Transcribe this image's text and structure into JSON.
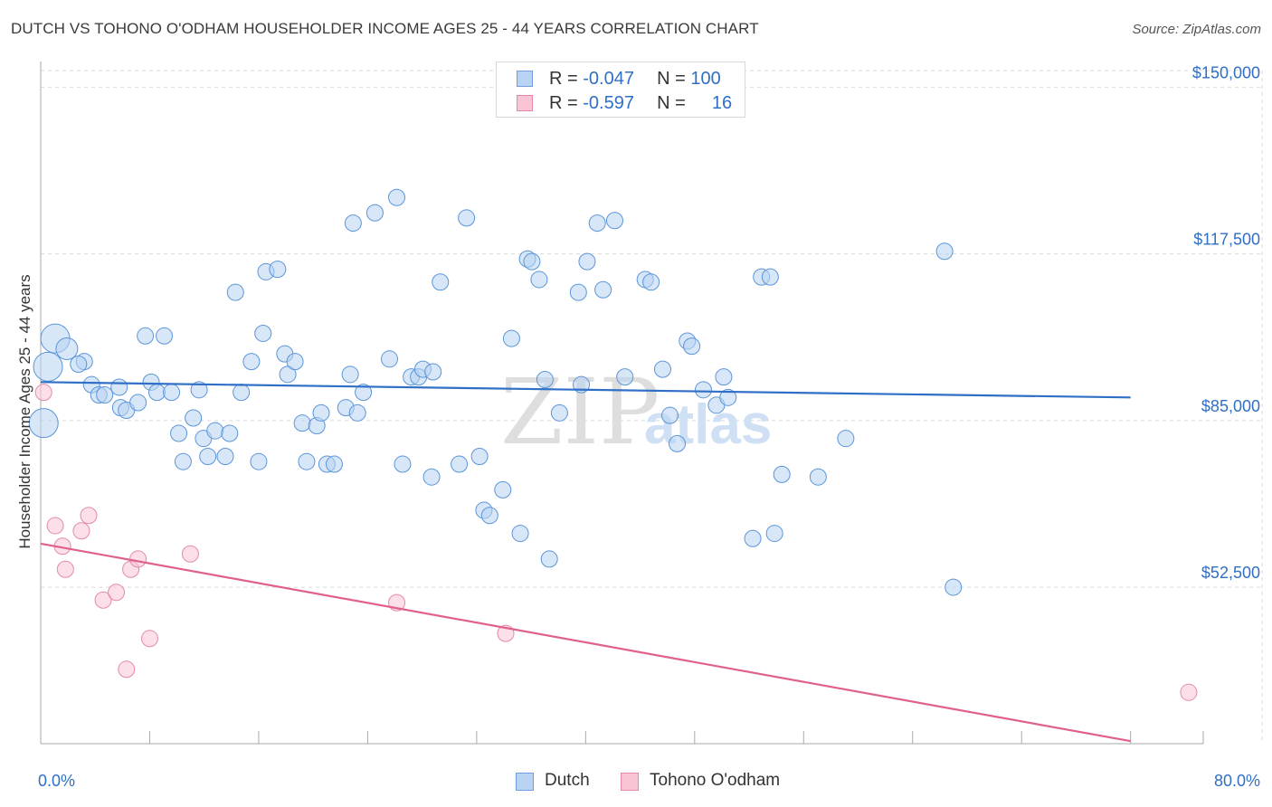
{
  "title": "DUTCH VS TOHONO O'ODHAM HOUSEHOLDER INCOME AGES 25 - 44 YEARS CORRELATION CHART",
  "source": "Source: ZipAtlas.com",
  "watermark": {
    "zip": "ZIP",
    "atlas": "atlas"
  },
  "legend": {
    "r_label": "R =",
    "n_label": "N =",
    "entries": [
      {
        "name": "Dutch",
        "r": "-0.047",
        "n": "100",
        "fill": "#b8d3f3",
        "stroke": "#6f9fdc"
      },
      {
        "name": "Tohono O'odham",
        "r": "-0.597",
        "n": "16",
        "fill": "#f9c5d5",
        "stroke": "#e48aa8"
      }
    ]
  },
  "chart_data": {
    "type": "scatter",
    "title": "DUTCH VS TOHONO O'ODHAM HOUSEHOLDER INCOME AGES 25 - 44 YEARS CORRELATION CHART",
    "xlabel": "",
    "ylabel": "Householder Income Ages 25 - 44 years",
    "xlim": [
      0,
      80
    ],
    "ylim": [
      22000,
      155000
    ],
    "x_tick_labels": [
      {
        "value": 0,
        "label": "0.0%"
      },
      {
        "value": 80,
        "label": "80.0%"
      }
    ],
    "y_ticks": [
      {
        "value": 52500,
        "label": "$52,500"
      },
      {
        "value": 85000,
        "label": "$85,000"
      },
      {
        "value": 117500,
        "label": "$117,500"
      },
      {
        "value": 150000,
        "label": "$150,000"
      }
    ],
    "x_minor_ticks": [
      7.5,
      15,
      22.5,
      30,
      37.5,
      45,
      52.5,
      60,
      67.5,
      75,
      80
    ],
    "colors": {
      "grid": "#d9d9d9",
      "axis": "#aaaaaa",
      "tick_label": "#2f6fc6"
    },
    "series": [
      {
        "name": "Dutch",
        "color": "#5b95d9",
        "fill": "#b8d3f3",
        "trend": {
          "x": [
            0,
            75
          ],
          "y": [
            92500,
            89500
          ],
          "color": "#2f6fc6"
        },
        "points": [
          [
            1.0,
            101000,
            3
          ],
          [
            0.5,
            95500,
            3
          ],
          [
            0.2,
            84500,
            3
          ],
          [
            1.8,
            99000,
            2
          ],
          [
            3.0,
            96500,
            1
          ],
          [
            2.6,
            96000,
            1
          ],
          [
            3.5,
            92000,
            1
          ],
          [
            4.0,
            90000,
            1
          ],
          [
            4.4,
            90000,
            1
          ],
          [
            5.5,
            87500,
            1
          ],
          [
            5.9,
            87000,
            1
          ],
          [
            5.4,
            91500,
            1
          ],
          [
            6.7,
            88500,
            1
          ],
          [
            7.2,
            101500,
            1
          ],
          [
            7.6,
            92500,
            1
          ],
          [
            8.0,
            90500,
            1
          ],
          [
            8.5,
            101500,
            1
          ],
          [
            9.0,
            90500,
            1
          ],
          [
            9.5,
            82500,
            1
          ],
          [
            9.8,
            77000,
            1
          ],
          [
            10.5,
            85500,
            1
          ],
          [
            10.9,
            91000,
            1
          ],
          [
            11.2,
            81500,
            1
          ],
          [
            11.5,
            78000,
            1
          ],
          [
            12.0,
            83000,
            1
          ],
          [
            12.7,
            78000,
            1
          ],
          [
            13.0,
            82500,
            1
          ],
          [
            13.4,
            110000,
            1
          ],
          [
            13.8,
            90500,
            1
          ],
          [
            14.5,
            96500,
            1
          ],
          [
            15.0,
            77000,
            1
          ],
          [
            15.3,
            102000,
            1
          ],
          [
            15.5,
            114000,
            1
          ],
          [
            16.3,
            114500,
            1
          ],
          [
            16.8,
            98000,
            1
          ],
          [
            17.0,
            94000,
            1
          ],
          [
            17.5,
            96500,
            1
          ],
          [
            18.0,
            84500,
            1
          ],
          [
            18.3,
            77000,
            1
          ],
          [
            19.0,
            84000,
            1
          ],
          [
            19.3,
            86500,
            1
          ],
          [
            19.7,
            76500,
            1
          ],
          [
            20.2,
            76500,
            1
          ],
          [
            21.0,
            87500,
            1
          ],
          [
            21.3,
            94000,
            1
          ],
          [
            21.8,
            86500,
            1
          ],
          [
            22.2,
            90500,
            1
          ],
          [
            21.5,
            123500,
            1
          ],
          [
            23.0,
            125500,
            1
          ],
          [
            24.0,
            97000,
            1
          ],
          [
            24.5,
            128500,
            1
          ],
          [
            24.9,
            76500,
            1
          ],
          [
            25.5,
            93500,
            1
          ],
          [
            26.0,
            93500,
            1
          ],
          [
            26.3,
            95000,
            1
          ],
          [
            27.0,
            94500,
            1
          ],
          [
            27.5,
            112000,
            1
          ],
          [
            26.9,
            74000,
            1
          ],
          [
            28.8,
            76500,
            1
          ],
          [
            29.3,
            124500,
            1
          ],
          [
            30.2,
            78000,
            1
          ],
          [
            30.5,
            67500,
            1
          ],
          [
            30.9,
            66500,
            1
          ],
          [
            31.8,
            71500,
            1
          ],
          [
            32.4,
            101000,
            1
          ],
          [
            33.0,
            63000,
            1
          ],
          [
            33.5,
            116500,
            1
          ],
          [
            33.8,
            116000,
            1
          ],
          [
            34.3,
            112500,
            1
          ],
          [
            34.7,
            93000,
            1
          ],
          [
            35.0,
            58000,
            1
          ],
          [
            35.7,
            86500,
            1
          ],
          [
            37.2,
            92000,
            1
          ],
          [
            37.0,
            110000,
            1
          ],
          [
            37.6,
            116000,
            1
          ],
          [
            38.3,
            123500,
            1
          ],
          [
            38.7,
            110500,
            1
          ],
          [
            39.5,
            124000,
            1
          ],
          [
            40.2,
            93500,
            1
          ],
          [
            41.6,
            112500,
            1
          ],
          [
            42.0,
            112000,
            1
          ],
          [
            42.8,
            95000,
            1
          ],
          [
            43.3,
            86000,
            1
          ],
          [
            43.8,
            80500,
            1
          ],
          [
            44.5,
            100500,
            1
          ],
          [
            44.8,
            99500,
            1
          ],
          [
            45.6,
            91000,
            1
          ],
          [
            46.5,
            88000,
            1
          ],
          [
            47.0,
            93500,
            1
          ],
          [
            47.3,
            89500,
            1
          ],
          [
            49.0,
            62000,
            1
          ],
          [
            49.6,
            113000,
            1
          ],
          [
            50.2,
            113000,
            1
          ],
          [
            50.5,
            63000,
            1
          ],
          [
            51.0,
            74500,
            1
          ],
          [
            53.5,
            74000,
            1
          ],
          [
            55.4,
            81500,
            1
          ],
          [
            62.2,
            118000,
            1
          ],
          [
            62.8,
            52500,
            1
          ]
        ]
      },
      {
        "name": "Tohono O'odham",
        "color": "#e48aa8",
        "fill": "#f9c5d5",
        "trend": {
          "x": [
            0,
            75
          ],
          "y": [
            61000,
            22500
          ],
          "color": "#e0608c"
        },
        "points": [
          [
            0.2,
            90500,
            1
          ],
          [
            1.0,
            64500,
            1
          ],
          [
            1.5,
            60500,
            1
          ],
          [
            1.7,
            56000,
            1
          ],
          [
            2.8,
            63500,
            1
          ],
          [
            3.3,
            66500,
            1
          ],
          [
            4.3,
            50000,
            1
          ],
          [
            5.2,
            51500,
            1
          ],
          [
            5.9,
            36500,
            1
          ],
          [
            6.2,
            56000,
            1
          ],
          [
            6.7,
            58000,
            1
          ],
          [
            7.5,
            42500,
            1
          ],
          [
            10.3,
            59000,
            1
          ],
          [
            24.5,
            49500,
            1
          ],
          [
            32.0,
            43500,
            1
          ],
          [
            79.0,
            32000,
            1
          ]
        ]
      }
    ]
  }
}
